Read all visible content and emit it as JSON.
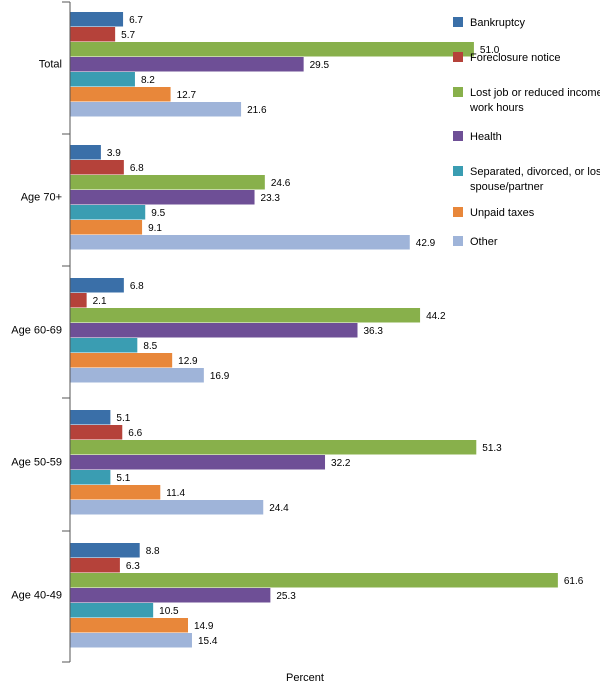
{
  "chart_data": {
    "type": "bar",
    "orientation": "horizontal",
    "categories": [
      "Total",
      "Age 70+",
      "Age 60-69",
      "Age 50-59",
      "Age 40-49"
    ],
    "series": [
      {
        "name": "Bankruptcy",
        "color": "#3a6fa8",
        "values": [
          6.7,
          3.9,
          6.8,
          5.1,
          8.8
        ]
      },
      {
        "name": "Foreclosure notice",
        "color": "#b5423a",
        "values": [
          5.7,
          6.8,
          2.1,
          6.6,
          6.3
        ]
      },
      {
        "name": "Lost job or reduced income/\nwork hours",
        "color": "#88b04b",
        "values": [
          51.0,
          24.6,
          44.2,
          51.3,
          61.6
        ]
      },
      {
        "name": "Health",
        "color": "#6e4f96",
        "values": [
          29.5,
          23.3,
          36.3,
          32.2,
          25.3
        ]
      },
      {
        "name": "Separated, divorced, or lost\nspouse/partner",
        "color": "#3a9db2",
        "values": [
          8.2,
          9.5,
          8.5,
          5.1,
          10.5
        ]
      },
      {
        "name": "Unpaid taxes",
        "color": "#e8873a",
        "values": [
          12.7,
          9.1,
          12.9,
          11.4,
          14.9
        ]
      },
      {
        "name": "Other",
        "color": "#9fb4d9",
        "values": [
          21.6,
          42.9,
          16.9,
          24.4,
          15.4
        ]
      }
    ],
    "value_labels": [
      [
        "6.7",
        "3.9",
        "6.8",
        "5.1",
        "8.8"
      ],
      [
        "5.7",
        "6.8",
        "2.1",
        "6.6",
        "6.3"
      ],
      [
        "51.0",
        "24.6",
        "44.2",
        "51.3",
        "61.6"
      ],
      [
        "29.5",
        "23.3",
        "36.3",
        "32.2",
        "25.3"
      ],
      [
        "8.2",
        "9.5",
        "8.5",
        "5.1",
        "10.5"
      ],
      [
        "12.7",
        "9.1",
        "12.9",
        "11.4",
        "14.9"
      ],
      [
        "21.6",
        "42.9",
        "16.9",
        "24.4",
        "15.4"
      ]
    ],
    "xlabel": "Percent",
    "xlim": [
      0,
      63
    ],
    "grid": false,
    "legend_position": "right"
  }
}
